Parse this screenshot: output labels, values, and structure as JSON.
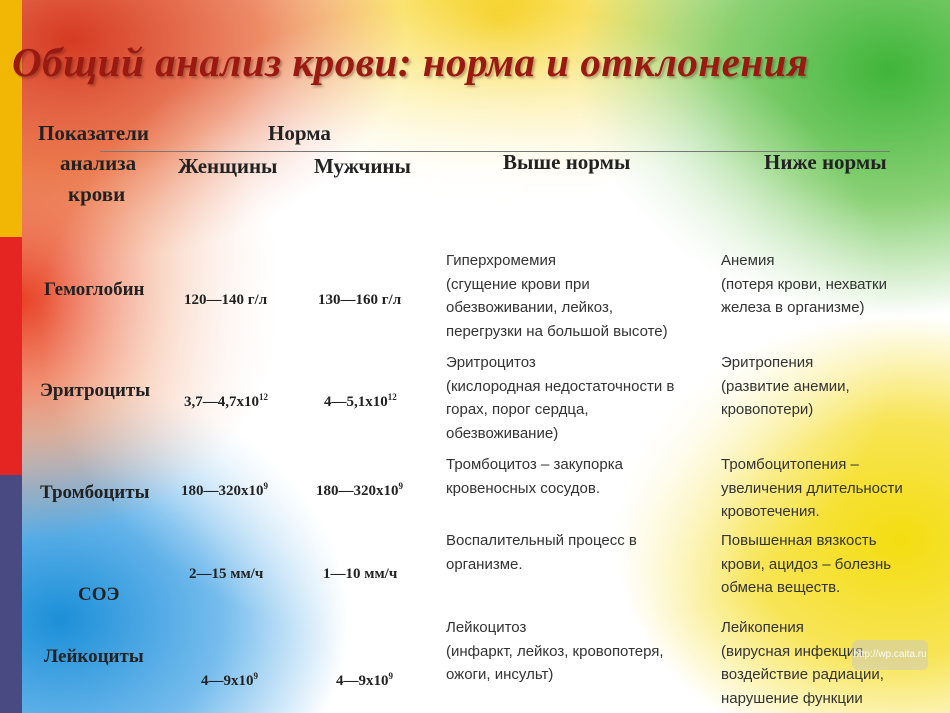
{
  "title": "Общий анализ крови: норма и отклонения",
  "header": {
    "col_indicator": [
      "Показатели",
      "анализа",
      "крови"
    ],
    "norm": "Норма",
    "women": "Женщины",
    "men": "Мужчины",
    "above": "Выше нормы",
    "below": "Ниже нормы"
  },
  "rows": [
    {
      "name": "Гемоглобин",
      "women": "120—140 г/л",
      "men": "130—160 г/л",
      "above": [
        "Гиперхромемия",
        "(сгущение крови при",
        "обезвоживании, лейкоз,",
        "перегрузки на большой высоте)"
      ],
      "below": [
        "Анемия",
        "(потеря крови, нехватки",
        "железа в организме)"
      ]
    },
    {
      "name": "Эритроциты",
      "women_base": "3,7—4,7х10",
      "women_exp": "12",
      "men_base": "4—5,1х10",
      "men_exp": "12",
      "above": [
        "Эритроцитоз",
        "(кислородная недостаточности в",
        "горах, порог сердца,",
        "обезвоживание)"
      ],
      "below": [
        "Эритропения",
        "(развитие анемии,",
        "кровопотери)"
      ]
    },
    {
      "name": "Тромбоциты",
      "women_base": "180—320х10",
      "women_exp": "9",
      "men_base": "180—320х10",
      "men_exp": "9",
      "above": [
        "Тромбоцитоз – закупорка",
        "кровеносных сосудов."
      ],
      "below": [
        "Тромбоцитопения –",
        "увеличения длительности",
        "кровотечения."
      ]
    },
    {
      "name": "СОЭ",
      "women": "2—15 мм/ч",
      "men": "1—10 мм/ч",
      "above": [
        "Воспалительный процесс в",
        "организме."
      ],
      "below": [
        "Повышенная вязкость",
        "крови, ацидоз – болезнь",
        "обмена веществ."
      ]
    },
    {
      "name": "Лейкоциты",
      "women_base": "4—9х10",
      "women_exp": "9",
      "men_base": "4—9х10",
      "men_exp": "9",
      "above": [
        "Лейкоцитоз",
        "(инфаркт, лейкоз, кровопотеря,",
        "ожоги, инсульт)"
      ],
      "below": [
        "Лейкопения",
        "(вирусная инфекция,",
        "воздействие радиации,",
        "нарушение функции"
      ]
    }
  ],
  "watermark": "http://wp.caita.ru",
  "colors": {
    "title": "#9a1a12",
    "sidebar": [
      "#f2b705",
      "#e52521",
      "#4a4a82"
    ]
  }
}
